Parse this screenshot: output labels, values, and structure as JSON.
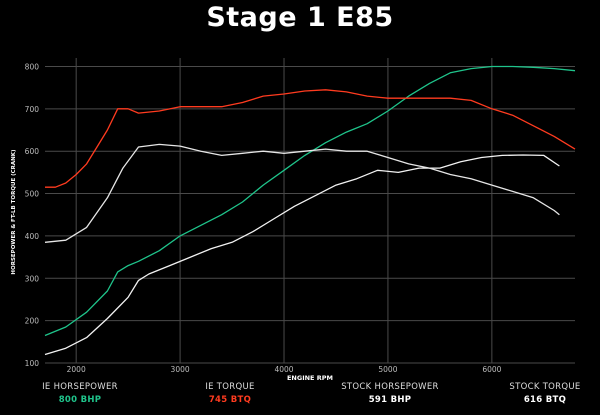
{
  "chart_data": {
    "type": "line",
    "title": "Stage 1 E85",
    "xlabel": "ENGINE RPM",
    "ylabel": "HORSEPOWER & FT-LB TORQUE (CRANK)",
    "xlim": [
      1700,
      6800
    ],
    "ylim": [
      100,
      820
    ],
    "xticks": [
      2000,
      3000,
      4000,
      5000,
      6000
    ],
    "yticks": [
      100,
      200,
      300,
      400,
      500,
      600,
      700,
      800
    ],
    "grid": true,
    "series": [
      {
        "name": "IE HORSEPOWER",
        "summary": "800 BHP",
        "color": "#1fc48b",
        "points": [
          [
            1700,
            165
          ],
          [
            1900,
            185
          ],
          [
            2100,
            220
          ],
          [
            2300,
            270
          ],
          [
            2400,
            315
          ],
          [
            2500,
            330
          ],
          [
            2600,
            340
          ],
          [
            2800,
            365
          ],
          [
            3000,
            400
          ],
          [
            3200,
            425
          ],
          [
            3400,
            450
          ],
          [
            3600,
            480
          ],
          [
            3800,
            520
          ],
          [
            4000,
            555
          ],
          [
            4200,
            590
          ],
          [
            4400,
            620
          ],
          [
            4600,
            645
          ],
          [
            4800,
            665
          ],
          [
            5000,
            695
          ],
          [
            5200,
            730
          ],
          [
            5400,
            760
          ],
          [
            5600,
            785
          ],
          [
            5800,
            795
          ],
          [
            6000,
            800
          ],
          [
            6200,
            800
          ],
          [
            6400,
            798
          ],
          [
            6600,
            795
          ],
          [
            6800,
            790
          ]
        ]
      },
      {
        "name": "IE TORQUE",
        "summary": "745 BTQ",
        "color": "#ff3b1f",
        "points": [
          [
            1700,
            515
          ],
          [
            1800,
            515
          ],
          [
            1900,
            525
          ],
          [
            2000,
            545
          ],
          [
            2100,
            570
          ],
          [
            2200,
            610
          ],
          [
            2300,
            650
          ],
          [
            2400,
            700
          ],
          [
            2500,
            700
          ],
          [
            2600,
            690
          ],
          [
            2800,
            695
          ],
          [
            3000,
            705
          ],
          [
            3200,
            705
          ],
          [
            3400,
            705
          ],
          [
            3600,
            715
          ],
          [
            3800,
            730
          ],
          [
            4000,
            735
          ],
          [
            4200,
            742
          ],
          [
            4400,
            745
          ],
          [
            4600,
            740
          ],
          [
            4800,
            730
          ],
          [
            5000,
            725
          ],
          [
            5200,
            725
          ],
          [
            5400,
            725
          ],
          [
            5600,
            725
          ],
          [
            5800,
            720
          ],
          [
            6000,
            700
          ],
          [
            6200,
            685
          ],
          [
            6400,
            660
          ],
          [
            6600,
            635
          ],
          [
            6800,
            605
          ]
        ]
      },
      {
        "name": "STOCK HORSEPOWER",
        "summary": "591 BHP",
        "color": "#f2f2f2",
        "points": [
          [
            1700,
            120
          ],
          [
            1900,
            135
          ],
          [
            2100,
            160
          ],
          [
            2300,
            205
          ],
          [
            2500,
            255
          ],
          [
            2600,
            295
          ],
          [
            2700,
            310
          ],
          [
            2900,
            330
          ],
          [
            3100,
            350
          ],
          [
            3300,
            370
          ],
          [
            3500,
            385
          ],
          [
            3700,
            410
          ],
          [
            3900,
            440
          ],
          [
            4100,
            470
          ],
          [
            4300,
            495
          ],
          [
            4500,
            520
          ],
          [
            4700,
            535
          ],
          [
            4900,
            555
          ],
          [
            5100,
            550
          ],
          [
            5300,
            560
          ],
          [
            5500,
            560
          ],
          [
            5700,
            575
          ],
          [
            5900,
            585
          ],
          [
            6100,
            590
          ],
          [
            6300,
            591
          ],
          [
            6500,
            590
          ],
          [
            6650,
            565
          ]
        ]
      },
      {
        "name": "STOCK TORQUE",
        "summary": "616 BTQ",
        "color": "#e6e6e6",
        "points": [
          [
            1700,
            385
          ],
          [
            1900,
            390
          ],
          [
            2100,
            420
          ],
          [
            2300,
            490
          ],
          [
            2450,
            560
          ],
          [
            2600,
            610
          ],
          [
            2800,
            616
          ],
          [
            3000,
            612
          ],
          [
            3200,
            600
          ],
          [
            3400,
            590
          ],
          [
            3600,
            595
          ],
          [
            3800,
            600
          ],
          [
            4000,
            595
          ],
          [
            4200,
            600
          ],
          [
            4400,
            605
          ],
          [
            4600,
            600
          ],
          [
            4800,
            600
          ],
          [
            5000,
            585
          ],
          [
            5200,
            570
          ],
          [
            5400,
            560
          ],
          [
            5600,
            545
          ],
          [
            5800,
            535
          ],
          [
            6000,
            520
          ],
          [
            6200,
            505
          ],
          [
            6400,
            490
          ],
          [
            6600,
            460
          ],
          [
            6650,
            450
          ]
        ]
      }
    ]
  }
}
